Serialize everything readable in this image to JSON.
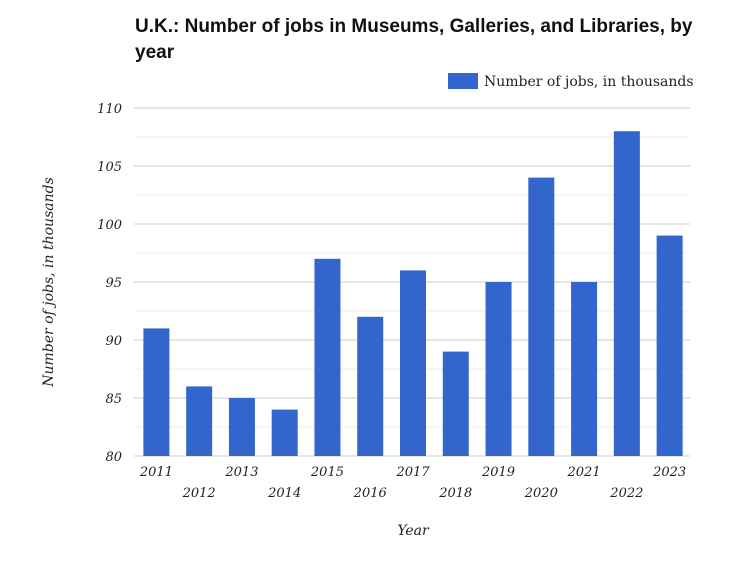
{
  "chart_data": {
    "type": "bar",
    "title": "U.K.: Number of jobs in Museums, Galleries, and Libraries, by year",
    "xlabel": "Year",
    "ylabel": "Number of jobs, in thousands",
    "categories": [
      "2011",
      "2012",
      "2013",
      "2014",
      "2015",
      "2016",
      "2017",
      "2018",
      "2019",
      "2020",
      "2021",
      "2022",
      "2023"
    ],
    "series": [
      {
        "name": "Number of jobs, in thousands",
        "color": "#3366cc",
        "values": [
          91,
          86,
          85,
          84,
          97,
          92,
          96,
          89,
          95,
          104,
          95,
          108,
          99
        ]
      }
    ],
    "ylim": [
      80,
      110
    ],
    "yticks": [
      "80",
      "85",
      "90",
      "95",
      "100",
      "105",
      "110"
    ],
    "grid": true,
    "legend": "top-right"
  }
}
